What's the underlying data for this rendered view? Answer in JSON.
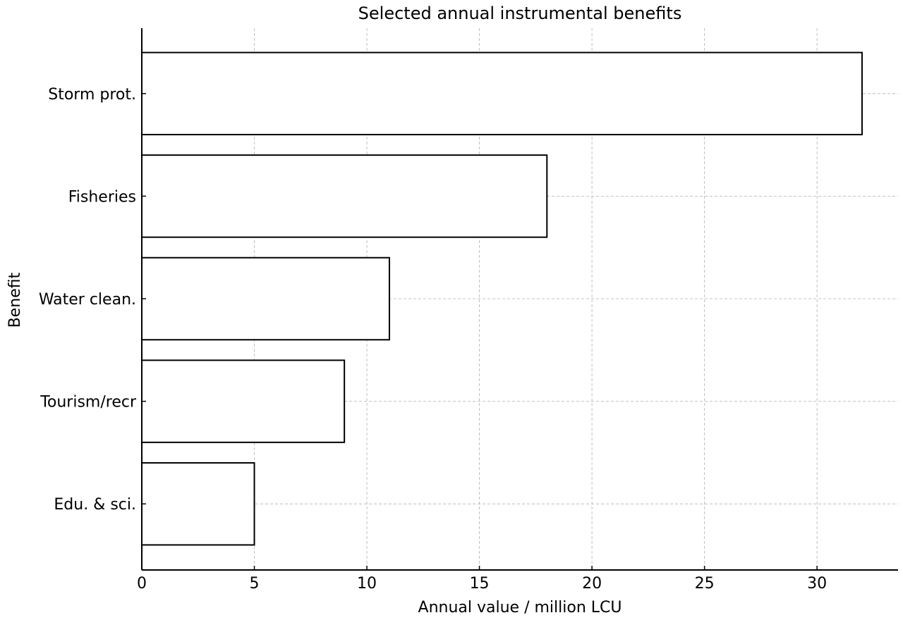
{
  "chart_data": {
    "type": "bar",
    "orientation": "horizontal",
    "title": "Selected annual instrumental benefits",
    "xlabel": "Annual value / million LCU",
    "ylabel": "Benefit",
    "categories": [
      "Storm prot.",
      "Fisheries",
      "Water clean.",
      "Tourism/recr",
      "Edu. & sci."
    ],
    "values": [
      32,
      18,
      11,
      9,
      5
    ],
    "xlim": [
      0,
      33.6
    ],
    "xticks": [
      0,
      5,
      10,
      15,
      20,
      25,
      30
    ],
    "grid": true,
    "bar_fill": "#ffffff",
    "bar_edge": "#000000"
  }
}
